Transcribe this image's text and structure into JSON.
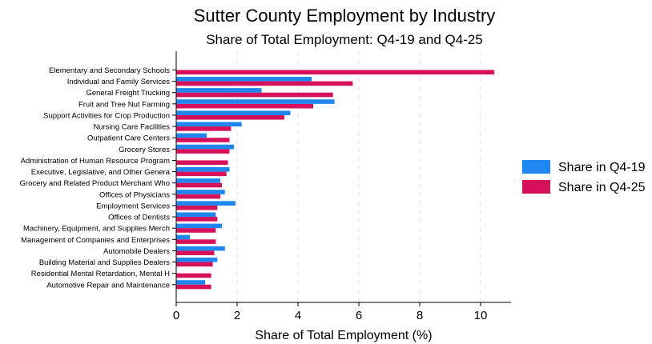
{
  "chart_data": {
    "type": "bar",
    "orientation": "horizontal",
    "title": "Sutter County Employment by Industry",
    "subtitle": "Share of Total Employment: Q4-19 and Q4-25",
    "xlabel": "Share of Total Employment (%)",
    "ylabel": "",
    "xlim": [
      0,
      11
    ],
    "xticks": [
      0,
      2,
      4,
      6,
      8,
      10
    ],
    "grid": "vertical dashed",
    "legend_position": "right",
    "categories": [
      "Elementary and Secondary Schools",
      "Individual and Family Services",
      "General Freight Trucking",
      "Fruit and Tree Nut Farming",
      "Support Activities for Crop Production",
      "Nursing Care Facilities",
      "Outpatient Care Centers",
      "Grocery Stores",
      "Administration of Human Resource Program",
      "Executive, Legislative, and Other Genera",
      "Grocery and Related Product Merchant Who",
      "Offices of Physicians",
      "Employment Services",
      "Offices of Dentists",
      "Machinery, Equipment, and Supplies Merch",
      "Management of Companies and Enterprises",
      "Automobile Dealers",
      "Building Material and Supplies Dealers",
      "Residential Mental Retardation, Mental H",
      "Automotive Repair and Maintenance"
    ],
    "series": [
      {
        "name": "Share in Q4-19",
        "color": "#1f86f0",
        "values": [
          0.0,
          4.45,
          2.8,
          5.2,
          3.75,
          2.15,
          1.0,
          1.9,
          0.0,
          1.75,
          1.45,
          1.6,
          1.95,
          1.3,
          1.5,
          0.45,
          1.6,
          1.35,
          0.0,
          0.95
        ]
      },
      {
        "name": "Share in Q4-25",
        "color": "#d6105a",
        "values": [
          10.45,
          5.8,
          5.15,
          4.5,
          3.55,
          1.8,
          1.75,
          1.75,
          1.7,
          1.65,
          1.5,
          1.45,
          1.35,
          1.35,
          1.3,
          1.3,
          1.25,
          1.2,
          1.15,
          1.15
        ]
      }
    ]
  }
}
